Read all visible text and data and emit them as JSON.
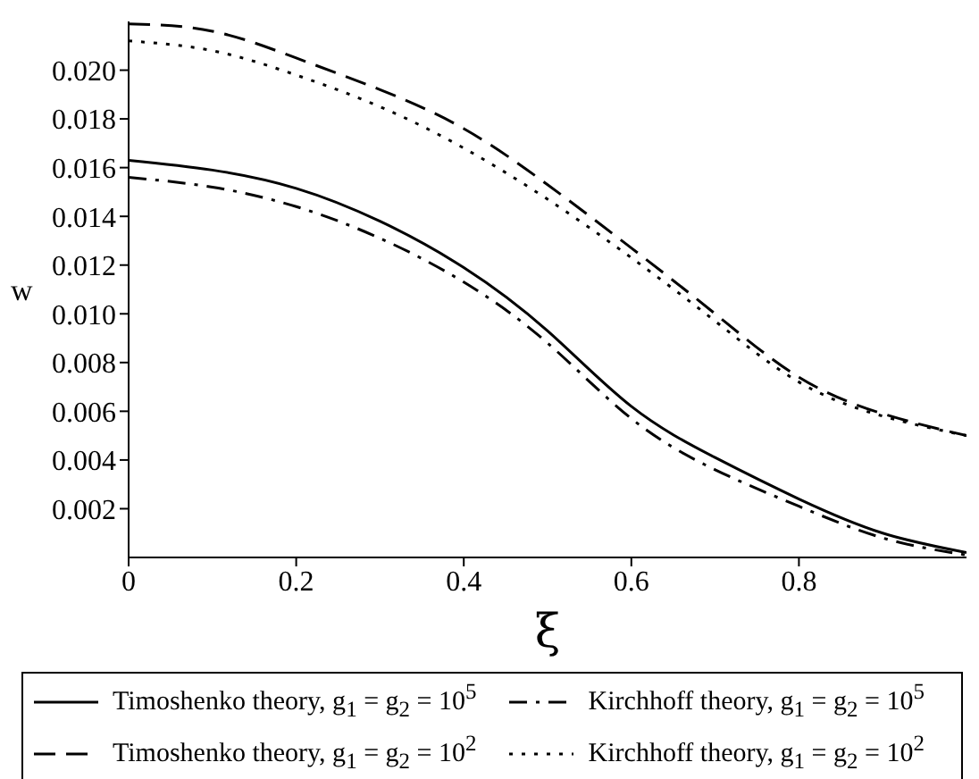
{
  "chart_data": {
    "type": "line",
    "xlabel": "ξ",
    "ylabel": "w",
    "x": [
      0,
      0.1,
      0.2,
      0.3,
      0.4,
      0.5,
      0.6,
      0.7,
      0.8,
      0.9,
      1
    ],
    "xlim": [
      0,
      1
    ],
    "xticks": [
      0,
      0.2,
      0.4,
      0.6,
      0.8
    ],
    "ylim": [
      0,
      0.022
    ],
    "yticks": [
      0.002,
      0.004,
      0.006,
      0.008,
      {
        "value": 0.01,
        "label": "0.010"
      },
      0.012,
      0.014,
      0.016,
      0.018,
      {
        "value": 0.02,
        "label": "0.020"
      }
    ],
    "grid": false,
    "legend": "bottom",
    "marker": "none",
    "series": [
      {
        "name": "Timoshenko theory, g$_{1}$ = g$_{2}$ = 10$^{5}$",
        "color": "#000000",
        "line_style": "solid",
        "values": [
          0.0163,
          0.0159,
          0.01515,
          0.0138,
          0.0119,
          0.0093,
          0.0062,
          0.0041,
          0.0024,
          0.001,
          0.0002
        ]
      },
      {
        "name": "Kirchhoff theory, g$_{1}$ = g$_{2}$ = 10$^{5}$",
        "color": "#000000",
        "line_style": "dashdot",
        "values": [
          0.0156,
          0.0152,
          0.0144,
          0.0131,
          0.0113,
          0.0088,
          0.0057,
          0.0036,
          0.0021,
          0.0008,
          0.0001
        ]
      },
      {
        "name": "Timoshenko theory, g$_{1}$ = g$_{2}$ = 10$^{2}$",
        "color": "#000000",
        "line_style": "dashed",
        "values": [
          0.0219,
          0.0216,
          0.0205,
          0.0192,
          0.0176,
          0.0153,
          0.0127,
          0.01,
          0.0074,
          0.0059,
          0.005
        ]
      },
      {
        "name": "Kirchhoff theory, g$_{1}$ = g$_{2}$ = 10$^{2}$",
        "color": "#000000",
        "line_style": "dotted",
        "values": [
          0.0212,
          0.0208,
          0.0198,
          0.0185,
          0.0168,
          0.0147,
          0.0123,
          0.0097,
          0.0072,
          0.0058,
          0.005
        ]
      }
    ]
  }
}
